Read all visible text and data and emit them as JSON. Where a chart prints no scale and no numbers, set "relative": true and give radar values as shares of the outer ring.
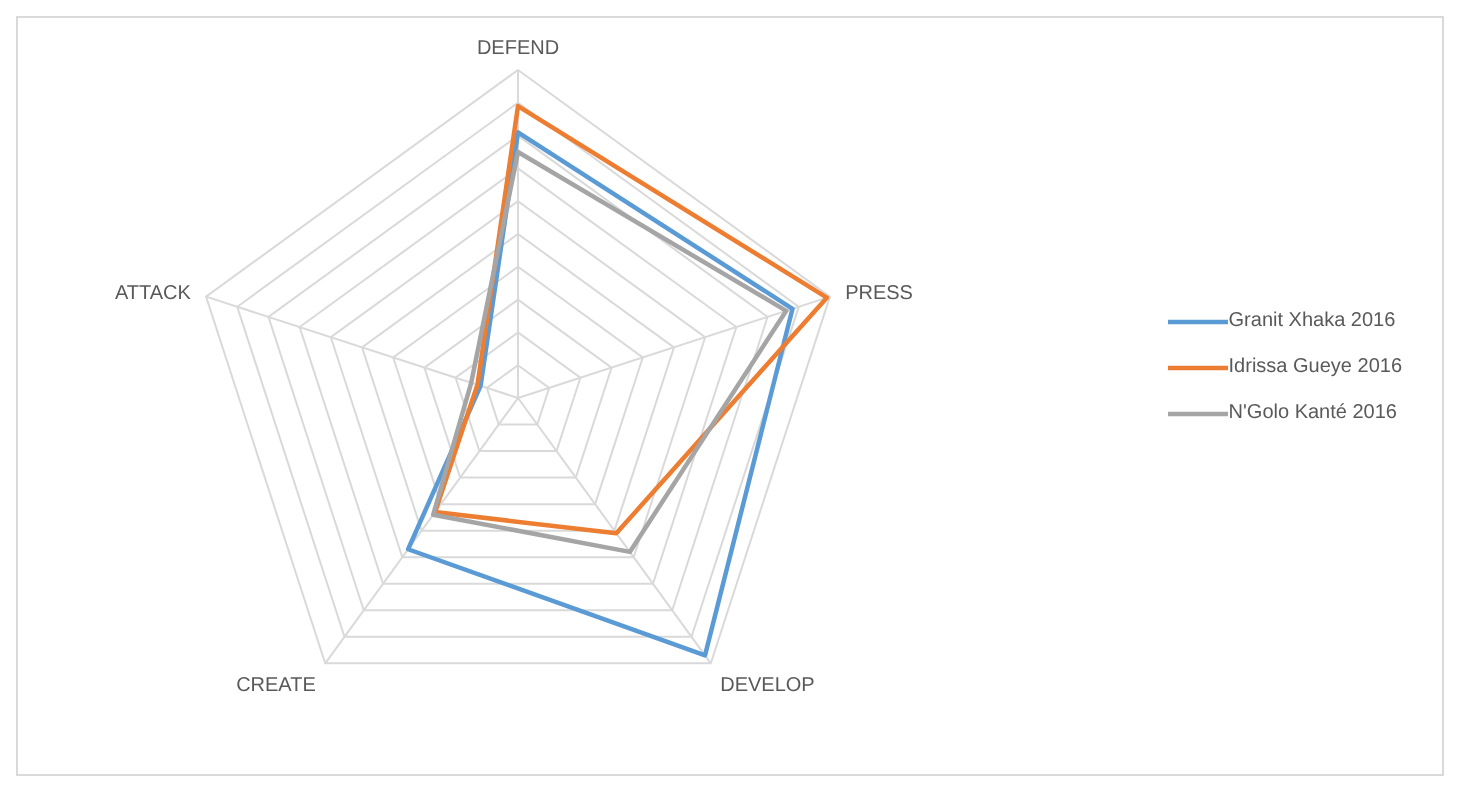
{
  "chart_data": {
    "type": "radar",
    "relative": true,
    "grid": true,
    "legend": "right",
    "categories": [
      "DEFEND",
      "PRESS",
      "DEVELOP",
      "CREATE",
      "ATTACK"
    ],
    "series": [
      {
        "name": "Granit Xhaka 2016",
        "color": "#5b9bd5",
        "values": [
          0.81,
          0.88,
          0.97,
          0.57,
          0.12
        ]
      },
      {
        "name": "Idrissa Gueye 2016",
        "color": "#ed7d31",
        "values": [
          0.89,
          0.99,
          0.51,
          0.43,
          0.13
        ]
      },
      {
        "name": "N'Golo Kanté 2016",
        "color": "#a5a5a5",
        "values": [
          0.75,
          0.86,
          0.58,
          0.44,
          0.15
        ]
      }
    ]
  }
}
